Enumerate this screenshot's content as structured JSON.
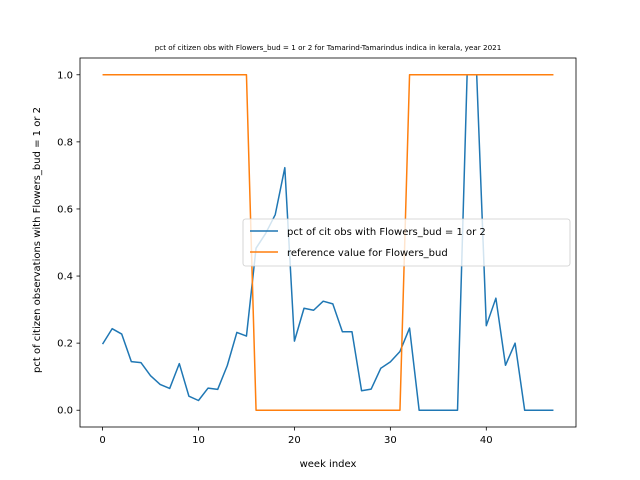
{
  "chart_data": {
    "type": "line",
    "title": "pct of citizen obs with Flowers_bud = 1 or 2 for Tamarind-Tamarindus indica in kerala, year 2021",
    "xlabel": "week index",
    "ylabel": "pct of citizen observations with Flowers_bud = 1 or 2",
    "xlim": [
      -2.35,
      49.35
    ],
    "ylim": [
      -0.05,
      1.05
    ],
    "x_ticks": [
      0,
      10,
      20,
      30,
      40
    ],
    "y_ticks": [
      0.0,
      0.2,
      0.4,
      0.6,
      0.8,
      1.0
    ],
    "x_tick_labels": [
      "0",
      "10",
      "20",
      "30",
      "40"
    ],
    "y_tick_labels": [
      "0.0",
      "0.2",
      "0.4",
      "0.6",
      "0.8",
      "1.0"
    ],
    "grid": false,
    "legend_position": "center-right",
    "x": [
      0,
      1,
      2,
      3,
      4,
      5,
      6,
      7,
      8,
      9,
      10,
      11,
      12,
      13,
      14,
      15,
      16,
      17,
      18,
      19,
      20,
      21,
      22,
      23,
      24,
      25,
      26,
      27,
      28,
      29,
      30,
      31,
      32,
      33,
      34,
      35,
      36,
      37,
      38,
      39,
      40,
      41,
      42,
      43,
      44,
      45,
      46,
      47
    ],
    "series": [
      {
        "name": "pct of cit obs with Flowers_bud = 1 or 2",
        "color": "#1f77b4",
        "values": [
          0.197,
          0.243,
          0.227,
          0.145,
          0.142,
          0.103,
          0.077,
          0.065,
          0.139,
          0.042,
          0.029,
          0.066,
          0.062,
          0.133,
          0.232,
          0.221,
          0.483,
          0.527,
          0.583,
          0.723,
          0.206,
          0.304,
          0.298,
          0.325,
          0.317,
          0.234,
          0.234,
          0.058,
          0.063,
          0.125,
          0.144,
          0.175,
          0.245,
          0.0,
          0.0,
          0.0,
          0.0,
          0.0,
          1.0,
          1.0,
          0.252,
          0.334,
          0.134,
          0.2,
          0.0,
          0.0,
          0.0,
          0.0
        ]
      },
      {
        "name": "reference value for Flowers_bud",
        "color": "#ff7f0e",
        "values": [
          1,
          1,
          1,
          1,
          1,
          1,
          1,
          1,
          1,
          1,
          1,
          1,
          1,
          1,
          1,
          1,
          0,
          0,
          0,
          0,
          0,
          0,
          0,
          0,
          0,
          0,
          0,
          0,
          0,
          0,
          0,
          0,
          1,
          1,
          1,
          1,
          1,
          1,
          1,
          1,
          1,
          1,
          1,
          1,
          1,
          1,
          1,
          1
        ]
      }
    ]
  }
}
